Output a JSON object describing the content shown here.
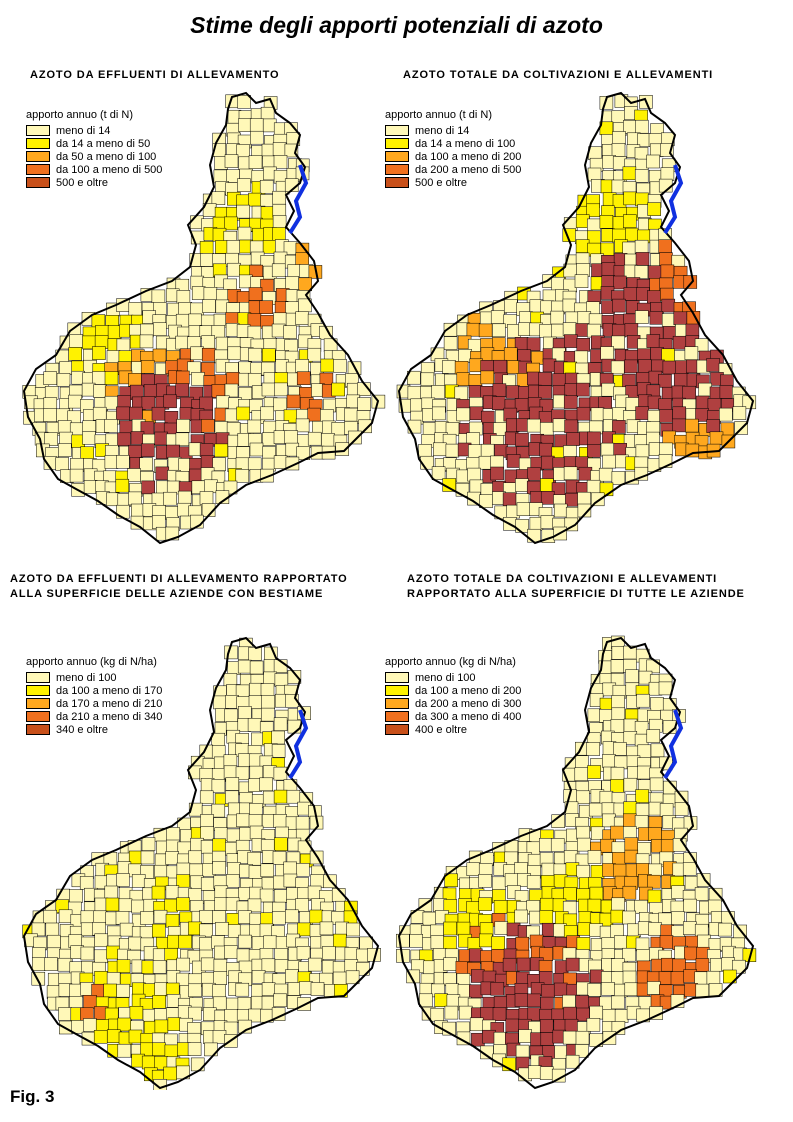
{
  "title": "Stime degli apporti potenziali di azoto",
  "figure_label": "Fig. 3",
  "colors": {
    "c1": "#FFF8B8",
    "c2": "#FFF200",
    "c3": "#FFA81E",
    "c4": "#F0701E",
    "c5": "#B04040",
    "c5_legend": "#C8501A",
    "water": "#1030E0"
  },
  "panels": [
    {
      "title_lines": [
        "AZOTO DA EFFLUENTI DI ALLEVAMENTO"
      ],
      "legend_title": "apporto annuo (t di N)",
      "legend_items": [
        "meno di 14",
        "da 14 a meno di 50",
        "da 50 a meno di 100",
        "da 100 a meno di 500",
        "500 e oltre"
      ]
    },
    {
      "title_lines": [
        "AZOTO TOTALE DA COLTIVAZIONI E ALLEVAMENTI"
      ],
      "legend_title": "apporto annuo (t di N)",
      "legend_items": [
        "meno di 14",
        "da 14 a meno di 100",
        "da 100 a meno di 200",
        "da 200 a meno di 500",
        "500 e oltre"
      ]
    },
    {
      "title_lines": [
        "AZOTO DA EFFLUENTI DI ALLEVAMENTO RAPPORTATO",
        "ALLA SUPERFICIE DELLE AZIENDE CON BESTIAME"
      ],
      "legend_title": "apporto annuo (kg di N/ha)",
      "legend_items": [
        "meno di 100",
        "da 100 a meno di 170",
        "da 170 a meno di 210",
        "da 210 a meno di 340",
        "340 e oltre"
      ]
    },
    {
      "title_lines": [
        "AZOTO TOTALE DA COLTIVAZIONI E ALLEVAMENTI",
        "RAPPORTATO  ALLA  SUPERFICIE DI TUTTE LE AZIENDE"
      ],
      "legend_title": "apporto annuo (kg di N/ha)",
      "legend_items": [
        "meno di 100",
        "da 100 a meno di 200",
        "da 200 a meno di 300",
        "da 300 a meno di 400",
        "400 e oltre"
      ]
    }
  ]
}
